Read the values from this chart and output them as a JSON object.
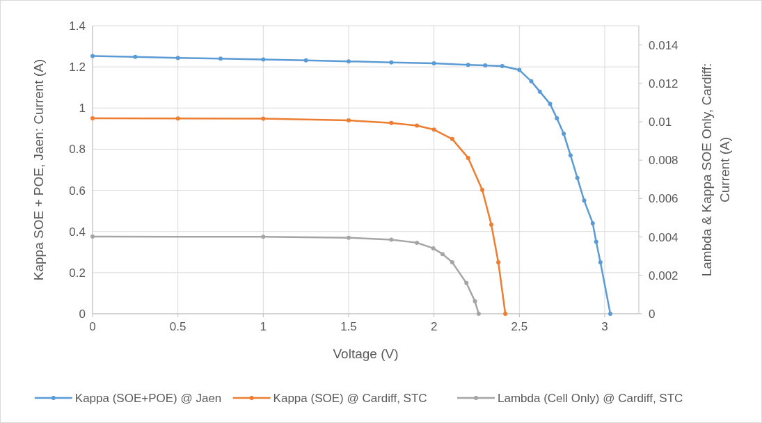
{
  "chart_data": {
    "type": "line",
    "xlabel": "Voltage (V)",
    "ylabel": "Kappa SOE + POE, Jaen: Current (A)",
    "y2label": "Lambda & Kappa SOE Only, Cardiff: Current (A)",
    "xlim": [
      0,
      3.2
    ],
    "xticks": [
      0,
      0.5,
      1,
      1.5,
      2,
      2.5,
      3
    ],
    "ylim": [
      0,
      1.4
    ],
    "yticks": [
      0,
      0.2,
      0.4,
      0.6,
      0.8,
      1,
      1.2,
      1.4
    ],
    "y2lim": [
      0,
      0.015
    ],
    "y2ticks": [
      0,
      0.002,
      0.004,
      0.006,
      0.008,
      0.01,
      0.012,
      0.014
    ],
    "grid": true,
    "legend": "bottom",
    "marker": "circle",
    "line_style": "solid",
    "series": [
      {
        "name": "Kappa (SOE+POE) @ Jaen",
        "color": "#5b9bd5",
        "x": [
          0,
          0.25,
          0.5,
          0.75,
          1,
          1.25,
          1.5,
          1.75,
          2,
          2.2,
          2.3,
          2.4,
          2.5,
          2.57,
          2.62,
          2.68,
          2.72,
          2.76,
          2.8,
          2.84,
          2.88,
          2.93,
          2.95,
          2.975,
          3.033
        ],
        "values": [
          1.253,
          1.249,
          1.244,
          1.24,
          1.236,
          1.232,
          1.227,
          1.222,
          1.217,
          1.21,
          1.207,
          1.204,
          1.185,
          1.13,
          1.08,
          1.02,
          0.95,
          0.875,
          0.77,
          0.66,
          0.55,
          0.44,
          0.35,
          0.25,
          0
        ]
      },
      {
        "name": "Kappa (SOE) @ Cardiff, STC",
        "color": "#ed7d31",
        "axis": "y2",
        "x": [
          0,
          0.5,
          1,
          1.5,
          1.75,
          1.9,
          2,
          2.107,
          2.2,
          2.283,
          2.336,
          2.377,
          2.418
        ],
        "values": [
          0.01018,
          0.01017,
          0.01016,
          0.01007,
          0.00994,
          0.0098,
          0.00959,
          0.0091,
          0.00812,
          0.00645,
          0.00464,
          0.00268,
          0
        ]
      },
      {
        "name": "Lambda (Cell Only) @ Cardiff, STC",
        "color": "#a5a5a5",
        "axis": "y2",
        "x": [
          0,
          1,
          1.5,
          1.75,
          1.9,
          1.996,
          2.05,
          2.107,
          2.19,
          2.24,
          2.262
        ],
        "values": [
          0.00402,
          0.00401,
          0.00396,
          0.00386,
          0.0037,
          0.00341,
          0.00311,
          0.00268,
          0.0016,
          0.00065,
          0
        ]
      }
    ]
  }
}
